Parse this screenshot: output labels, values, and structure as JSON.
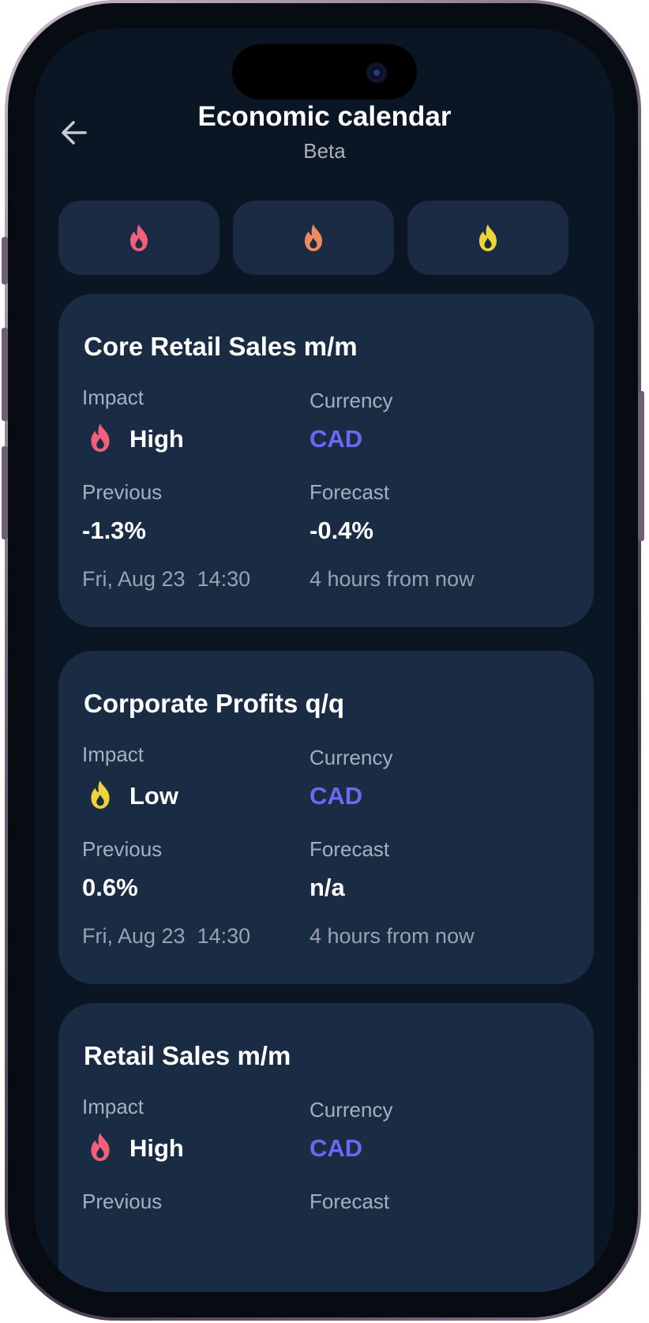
{
  "header": {
    "title": "Economic calendar",
    "subtitle": "Beta",
    "back_icon": "arrow-left-icon"
  },
  "filters": [
    {
      "icon": "flame-icon",
      "level": "high",
      "color": "#f0607a"
    },
    {
      "icon": "flame-icon",
      "level": "medium",
      "color": "#ee8a5c"
    },
    {
      "icon": "flame-icon",
      "level": "low",
      "color": "#ecd43a"
    }
  ],
  "labels": {
    "impact": "Impact",
    "currency": "Currency",
    "previous": "Previous",
    "forecast": "Forecast"
  },
  "colors": {
    "background": "#0a1624",
    "card": "#1a2b44",
    "currency": "#6f66f2",
    "impact_high": "#f0607a",
    "impact_low": "#ecd43a"
  },
  "events": [
    {
      "name": "Core Retail Sales m/m",
      "impact": "High",
      "currency": "CAD",
      "previous": "-1.3%",
      "forecast": "-0.4%",
      "date": "Fri, Aug 23  14:30",
      "relative": "4 hours from now"
    },
    {
      "name": "Corporate Profits q/q",
      "impact": "Low",
      "currency": "CAD",
      "previous": "0.6%",
      "forecast": "n/a",
      "date": "Fri, Aug 23  14:30",
      "relative": "4 hours from now"
    },
    {
      "name": "Retail Sales m/m",
      "impact": "High",
      "currency": "CAD",
      "previous": "",
      "forecast": "",
      "date": "",
      "relative": ""
    }
  ]
}
